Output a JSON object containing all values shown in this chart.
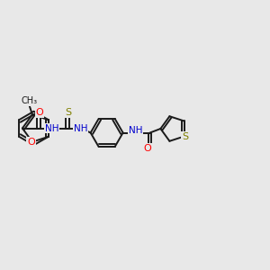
{
  "bg_color": "#e8e8e8",
  "bond_color": "#1a1a1a",
  "bond_width": 1.4,
  "atom_colors": {
    "O": "#ff0000",
    "N": "#0000cd",
    "S": "#808000",
    "C": "#1a1a1a"
  },
  "font_size": 7.5,
  "canvas_xlim": [
    0,
    12
  ],
  "canvas_ylim": [
    0,
    10
  ]
}
